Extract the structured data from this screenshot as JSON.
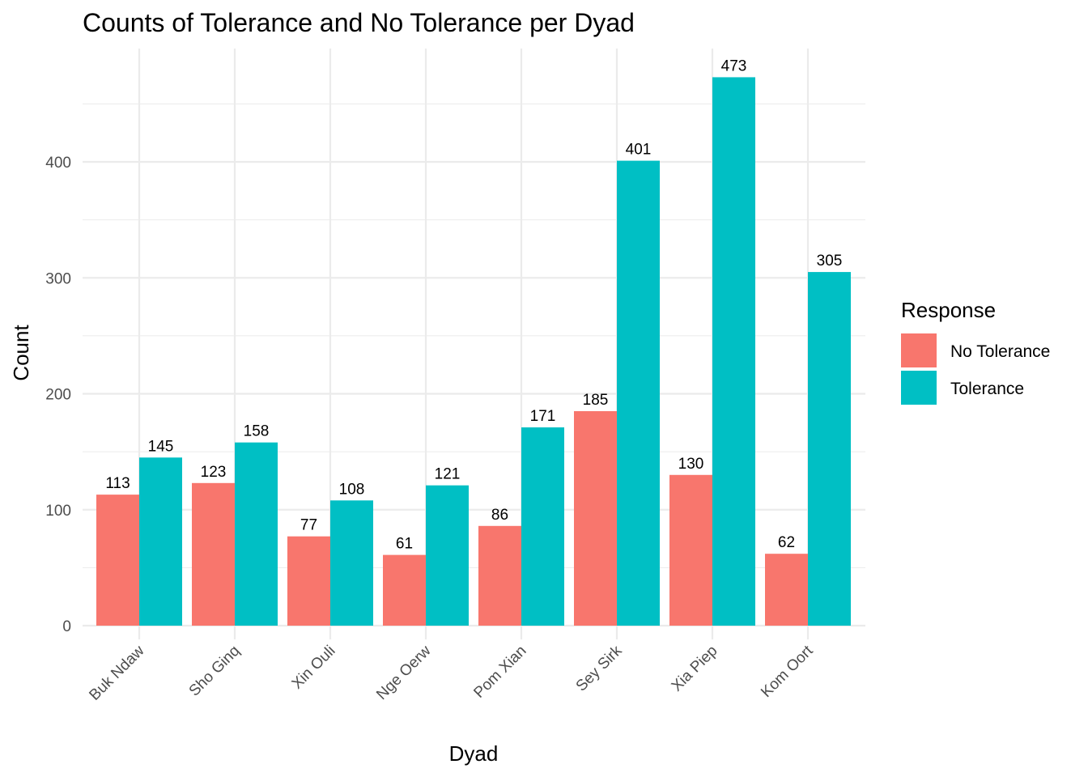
{
  "chart_data": {
    "type": "bar",
    "title": "Counts of Tolerance and No Tolerance per Dyad",
    "xlabel": "Dyad",
    "ylabel": "Count",
    "categories": [
      "Buk Ndaw",
      "Sho Ginq",
      "Xin Ouli",
      "Nge Oerw",
      "Pom Xian",
      "Sey Sirk",
      "Xia Piep",
      "Kom Oort"
    ],
    "series": [
      {
        "name": "No Tolerance",
        "color": "#F8766D",
        "values": [
          113,
          123,
          77,
          61,
          86,
          185,
          130,
          62
        ]
      },
      {
        "name": "Tolerance",
        "color": "#00BFC4",
        "values": [
          145,
          158,
          108,
          121,
          171,
          401,
          473,
          305
        ]
      }
    ],
    "yticks": [
      0,
      100,
      200,
      300,
      400
    ],
    "ylim": [
      0,
      490
    ],
    "grid": true,
    "legend": {
      "title": "Response",
      "placement": "right"
    }
  }
}
